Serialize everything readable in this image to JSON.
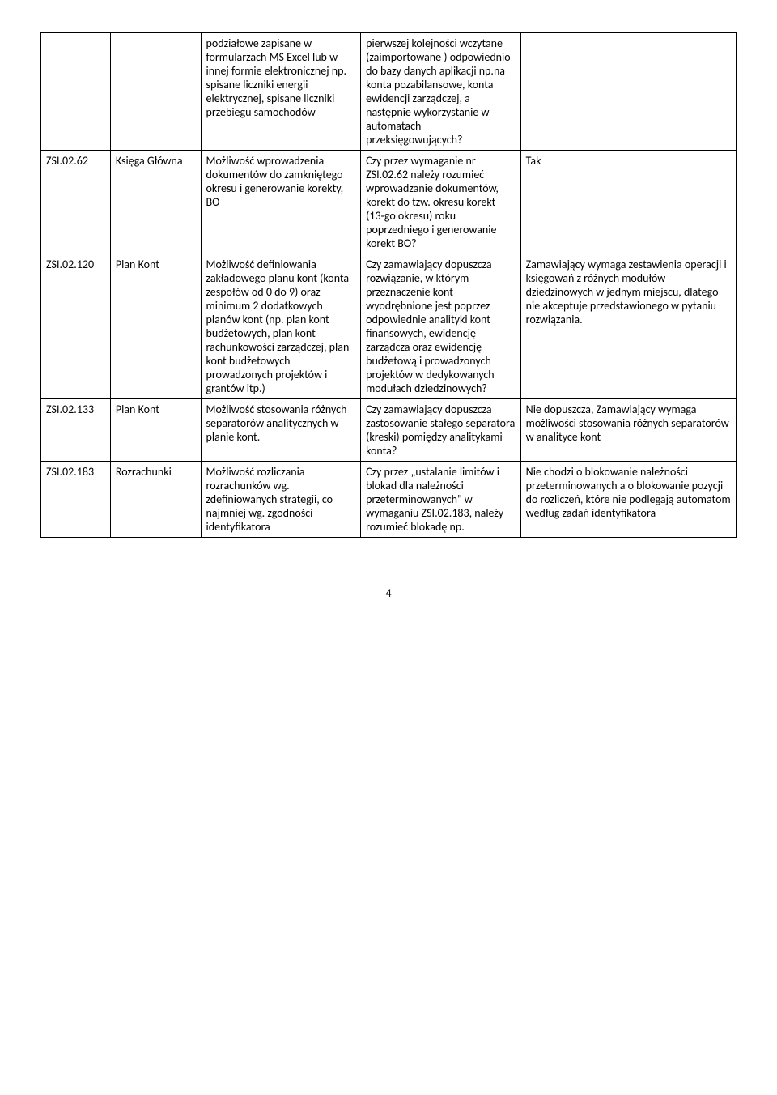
{
  "rows": [
    {
      "c1": "",
      "c2": "",
      "c3": "podziałowe zapisane w formularzach MS Excel lub w innej formie elektronicznej np. spisane liczniki energii elektrycznej, spisane liczniki przebiegu samochodów",
      "c4": "pierwszej kolejności wczytane (zaimportowane ) odpowiednio do bazy danych aplikacji np.na konta pozabilansowe, konta ewidencji zarządczej, a następnie wykorzystanie w automatach przeksięgowujących?",
      "c5": ""
    },
    {
      "c1": "ZSI.02.62",
      "c2": "Księga Główna",
      "c3": "Możliwość wprowadzenia dokumentów do zamkniętego okresu i generowanie korekty, BO",
      "c4": "Czy przez wymaganie nr ZSI.02.62 należy rozumieć wprowadzanie dokumentów, korekt do tzw. okresu korekt (13-go okresu) roku poprzedniego i generowanie korekt BO?",
      "c5": "Tak"
    },
    {
      "c1": "ZSI.02.120",
      "c2": "Plan Kont",
      "c3": "Możliwość definiowania zakładowego planu kont (konta zespołów od 0 do 9) oraz minimum 2 dodatkowych planów kont (np. plan kont budżetowych, plan kont rachunkowości zarządczej, plan kont budżetowych prowadzonych projektów i grantów itp.)",
      "c4": "Czy zamawiający dopuszcza rozwiązanie, w którym przeznaczenie kont wyodrębnione jest poprzez odpowiednie analityki kont finansowych, ewidencję zarządcza oraz ewidencję budżetową i prowadzonych projektów w dedykowanych modułach dziedzinowych?",
      "c5": "Zamawiający wymaga zestawienia operacji i księgowań z różnych modułów dziedzinowych w jednym miejscu, dlatego nie akceptuje przedstawionego w pytaniu rozwiązania."
    },
    {
      "c1": "ZSI.02.133",
      "c2": "Plan Kont",
      "c3": "Możliwość stosowania różnych separatorów analitycznych w planie kont.",
      "c4": "Czy zamawiający dopuszcza zastosowanie stałego separatora (kreski) pomiędzy analitykami konta?",
      "c5": "Nie dopuszcza, Zamawiający wymaga możliwości stosowania różnych separatorów  w analityce kont"
    },
    {
      "c1": "ZSI.02.183",
      "c2": "Rozrachunki",
      "c3": "Możliwość rozliczania rozrachunków wg. zdefiniowanych strategii, co najmniej wg. zgodności identyfikatora",
      "c4": "Czy przez „ustalanie limitów i blokad dla należności przeterminowanych\" w wymaganiu ZSI.02.183, należy rozumieć blokadę np.",
      "c5": "Nie chodzi o blokowanie należności przeterminowanych a o blokowanie  pozycji do rozliczeń, które nie podlegają automatom według zadań identyfikatora"
    }
  ],
  "page_number": "4"
}
